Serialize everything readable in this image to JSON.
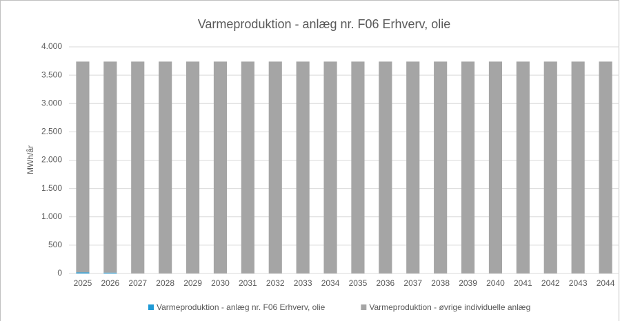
{
  "chart_data": {
    "type": "stacked_bar",
    "title": "Varmeproduktion - anlæg nr. F06 Erhverv, olie",
    "y_label": "MWh/år",
    "categories": [
      "2025",
      "2026",
      "2027",
      "2028",
      "2029",
      "2030",
      "2031",
      "2032",
      "2033",
      "2034",
      "2035",
      "2036",
      "2037",
      "2038",
      "2039",
      "2040",
      "2041",
      "2042",
      "2043",
      "2044"
    ],
    "series": [
      {
        "name": "Varmeproduktion - anlæg nr. F06 Erhverv, olie",
        "color": "#1f9ad6",
        "values": [
          20,
          15,
          0,
          0,
          0,
          0,
          0,
          0,
          0,
          0,
          0,
          0,
          0,
          0,
          0,
          0,
          0,
          0,
          0,
          0
        ]
      },
      {
        "name": "Varmeproduktion - øvrige individuelle anlæg",
        "color": "#a5a5a5",
        "values": [
          3720,
          3725,
          3740,
          3740,
          3740,
          3740,
          3740,
          3740,
          3740,
          3740,
          3740,
          3740,
          3740,
          3740,
          3740,
          3740,
          3740,
          3740,
          3740,
          3740
        ]
      }
    ],
    "ylim": [
      0,
      4000
    ],
    "yticks": [
      0,
      500,
      {
        "value": 1000,
        "label": "1.000"
      },
      {
        "value": 1500,
        "label": "1.500"
      },
      {
        "value": 2000,
        "label": "2.000"
      },
      {
        "value": 2500,
        "label": "2.500"
      },
      {
        "value": 3000,
        "label": "3.000"
      },
      {
        "value": 3500,
        "label": "3.500"
      },
      {
        "value": 4000,
        "label": "4.000"
      }
    ],
    "grid": true,
    "legend": "bottom"
  }
}
